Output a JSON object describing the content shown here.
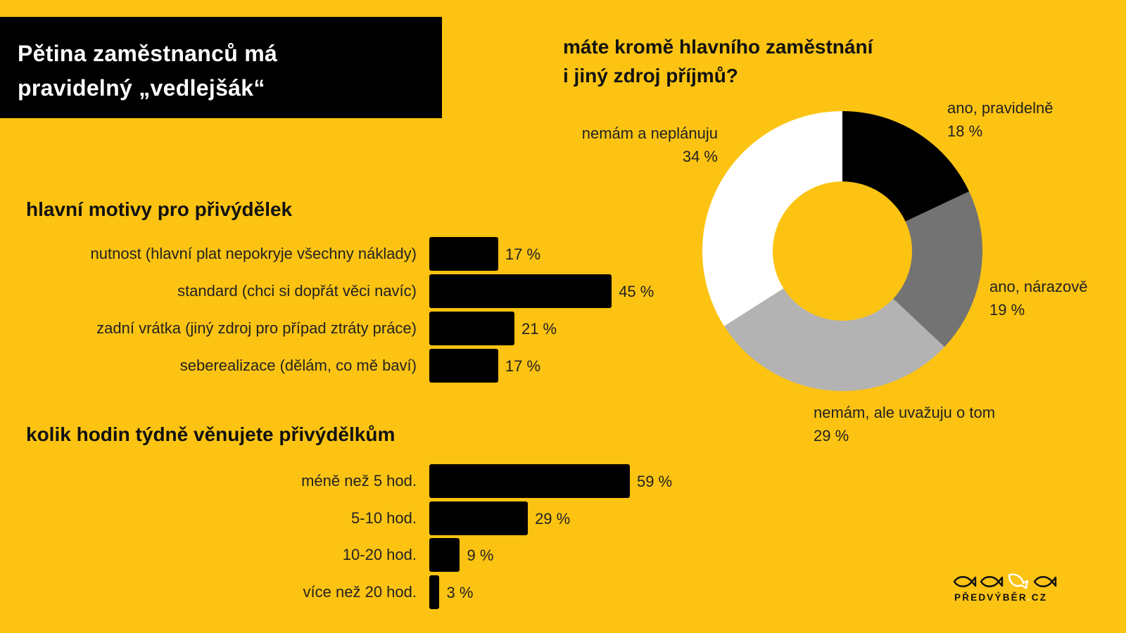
{
  "title": {
    "line1": "Pětina zaměstnanců má",
    "line2": "pravidelný „vedlejšák“"
  },
  "colors": {
    "background": "#FCC312",
    "title_box": "#000000",
    "bar": "#000000",
    "slice_black": "#000000",
    "slice_dark_grey": "#737373",
    "slice_light_grey": "#B3B3B3",
    "slice_white": "#FFFFFF"
  },
  "donut": {
    "question_line1": "máte kromě hlavního zaměstnání",
    "question_line2": "i jiný zdroj příjmů?"
  },
  "motives": {
    "heading": "hlavní motivy pro přivýdělek"
  },
  "hours": {
    "heading": "kolik hodin týdně věnujete přivýdělkům"
  },
  "logo": {
    "name": "PŘEDVÝBĚR",
    "dot": ".",
    "tld": "CZ",
    "icon": "fish-icons"
  },
  "chart_data": [
    {
      "type": "pie",
      "variant": "donut",
      "title": "máte kromě hlavního zaměstnání i jiný zdroj příjmů?",
      "categories": [
        "ano, pravidelně",
        "ano, nárazově",
        "nemám, ale uvažuju o tom",
        "nemám a neplánuju"
      ],
      "values": [
        18,
        19,
        29,
        34
      ],
      "value_labels": [
        "18 %",
        "19 %",
        "29 %",
        "34 %"
      ],
      "colors": [
        "#000000",
        "#737373",
        "#B3B3B3",
        "#FFFFFF"
      ],
      "start_angle": "12 o'clock, clockwise",
      "unit": "%"
    },
    {
      "type": "bar",
      "orientation": "horizontal",
      "title": "hlavní motivy pro přivýdělek",
      "categories": [
        "nutnost (hlavní plat nepokryje všechny náklady)",
        "standard (chci si dopřát věci navíc)",
        "zadní vrátka (jiný zdroj pro případ ztráty práce)",
        "seberealizace (dělám, co mě baví)"
      ],
      "values": [
        17,
        45,
        21,
        17
      ],
      "value_labels": [
        "17 %",
        "45 %",
        "21 %",
        "17 %"
      ],
      "xlabel": "",
      "ylabel": "",
      "unit": "%",
      "grid": false
    },
    {
      "type": "bar",
      "orientation": "horizontal",
      "title": "kolik hodin týdně věnujete přivýdělkům",
      "categories": [
        "méně než 5 hod.",
        "5-10 hod.",
        "10-20 hod.",
        "více než 20 hod."
      ],
      "values": [
        59,
        29,
        9,
        3
      ],
      "value_labels": [
        "59 %",
        "29 %",
        "9 %",
        "3 %"
      ],
      "xlabel": "",
      "ylabel": "",
      "unit": "%",
      "grid": false
    }
  ]
}
